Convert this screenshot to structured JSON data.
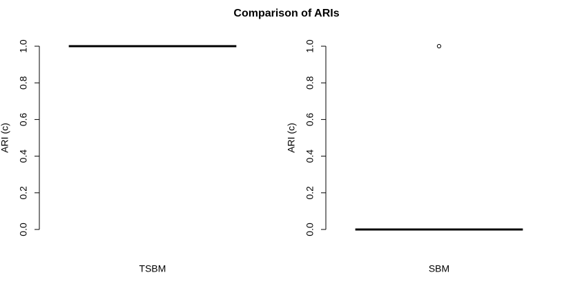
{
  "title": "Comparison of ARIs",
  "chart_data": [
    {
      "type": "box",
      "ylabel": "ARI (c)",
      "categories": [
        "TSBM"
      ],
      "boxes": [
        {
          "min": 1,
          "q1": 1,
          "median": 1,
          "q3": 1,
          "max": 1,
          "outliers": []
        }
      ],
      "ylim": [
        -0.04,
        1.04
      ],
      "yticks": [
        {
          "value": 0,
          "label": "0.0"
        },
        {
          "value": 0.2,
          "label": "0.2"
        },
        {
          "value": 0.4,
          "label": "0.4"
        },
        {
          "value": 0.6,
          "label": "0.6"
        },
        {
          "value": 0.8,
          "label": "0.8"
        },
        {
          "value": 1,
          "label": "1.0"
        }
      ]
    },
    {
      "type": "box",
      "ylabel": "ARI (c)",
      "categories": [
        "SBM"
      ],
      "boxes": [
        {
          "min": 0,
          "q1": 0,
          "median": 0,
          "q3": 0,
          "max": 0,
          "outliers": [
            1
          ]
        }
      ],
      "ylim": [
        -0.04,
        1.04
      ],
      "yticks": [
        {
          "value": 0,
          "label": "0.0"
        },
        {
          "value": 0.2,
          "label": "0.2"
        },
        {
          "value": 0.4,
          "label": "0.4"
        },
        {
          "value": 0.6,
          "label": "0.6"
        },
        {
          "value": 0.8,
          "label": "0.8"
        },
        {
          "value": 1,
          "label": "1.0"
        }
      ]
    }
  ]
}
